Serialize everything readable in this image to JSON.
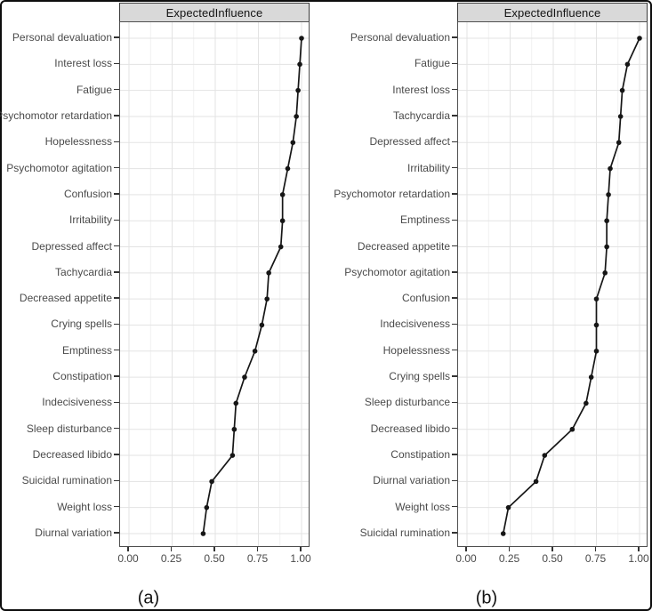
{
  "colors": {
    "strip_fill": "#d9d9d9",
    "strip_border": "#3b3b3b",
    "panel_border": "#4f4f4f",
    "grid_major": "#e3e3e3",
    "grid_minor": "#f1f1f1",
    "line": "#161616",
    "point": "#161616",
    "axis_text": "#4a4a4a",
    "tick": "#333333",
    "frame": "#0d0d0d"
  },
  "chart_data": [
    {
      "type": "line",
      "orientation": "horizontal",
      "title": "ExpectedInfluence",
      "caption": "(a)",
      "xlabel": "",
      "ylabel": "",
      "xlim": [
        0.0,
        1.0
      ],
      "x_ticks": [
        0.0,
        0.25,
        0.5,
        0.75,
        1.0
      ],
      "x_tick_labels": [
        "0.00",
        "0.25",
        "0.50",
        "0.75",
        "1.00"
      ],
      "x_minor_ticks": [
        0.125,
        0.375,
        0.625,
        0.875
      ],
      "grid": "vertical major+minor, horizontal major per category",
      "legend": "none",
      "categories": [
        "Personal devaluation",
        "Interest loss",
        "Fatigue",
        "Psychomotor retardation",
        "Hopelessness",
        "Psychomotor agitation",
        "Confusion",
        "Irritability",
        "Depressed affect",
        "Tachycardia",
        "Decreased appetite",
        "Crying spells",
        "Emptiness",
        "Constipation",
        "Indecisiveness",
        "Sleep disturbance",
        "Decreased libido",
        "Suicidal rumination",
        "Weight loss",
        "Diurnal variation"
      ],
      "values": [
        1.0,
        0.99,
        0.98,
        0.97,
        0.95,
        0.92,
        0.89,
        0.89,
        0.88,
        0.81,
        0.8,
        0.77,
        0.73,
        0.67,
        0.62,
        0.61,
        0.6,
        0.48,
        0.45,
        0.43
      ]
    },
    {
      "type": "line",
      "orientation": "horizontal",
      "title": "ExpectedInfluence",
      "caption": "(b)",
      "xlabel": "",
      "ylabel": "",
      "xlim": [
        0.0,
        1.0
      ],
      "x_ticks": [
        0.0,
        0.25,
        0.5,
        0.75,
        1.0
      ],
      "x_tick_labels": [
        "0.00",
        "0.25",
        "0.50",
        "0.75",
        "1.00"
      ],
      "x_minor_ticks": [
        0.125,
        0.375,
        0.625,
        0.875
      ],
      "grid": "vertical major+minor, horizontal major per category",
      "legend": "none",
      "categories": [
        "Personal devaluation",
        "Fatigue",
        "Interest loss",
        "Tachycardia",
        "Depressed affect",
        "Irritability",
        "Psychomotor retardation",
        "Emptiness",
        "Decreased appetite",
        "Psychomotor agitation",
        "Confusion",
        "Indecisiveness",
        "Hopelessness",
        "Crying spells",
        "Sleep disturbance",
        "Decreased libido",
        "Constipation",
        "Diurnal variation",
        "Weight loss",
        "Suicidal rumination"
      ],
      "values": [
        1.0,
        0.93,
        0.9,
        0.89,
        0.88,
        0.83,
        0.82,
        0.81,
        0.81,
        0.8,
        0.75,
        0.75,
        0.75,
        0.72,
        0.69,
        0.61,
        0.45,
        0.4,
        0.24,
        0.21
      ]
    }
  ]
}
